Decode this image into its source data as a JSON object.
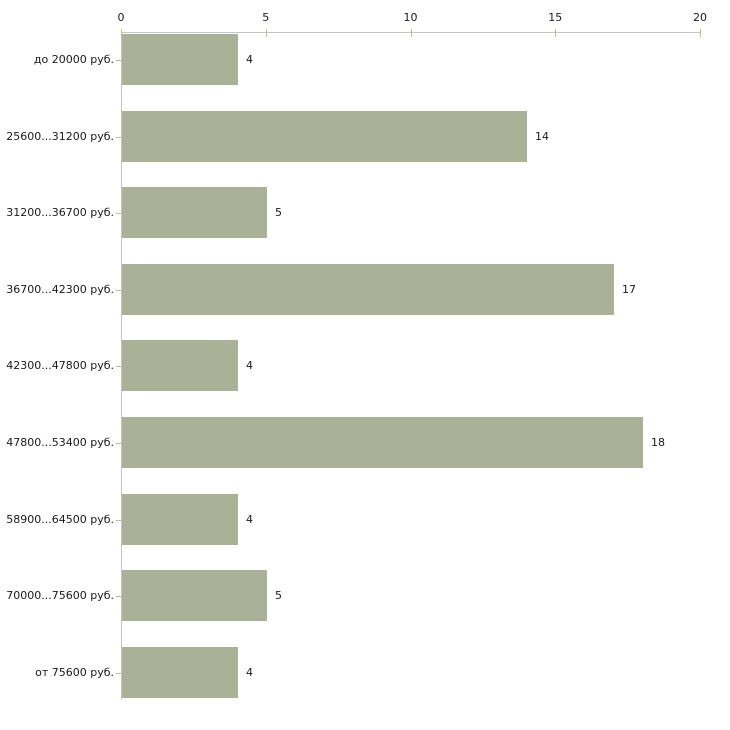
{
  "chart_data": {
    "type": "bar",
    "orientation": "horizontal",
    "title": "",
    "xlabel": "",
    "ylabel": "",
    "categories": [
      "до 20000 руб.",
      "25600...31200 руб.",
      "31200...36700 руб.",
      "36700...42300 руб.",
      "42300...47800 руб.",
      "47800...53400 руб.",
      "58900...64500 руб.",
      "70000...75600 руб.",
      "от 75600 руб."
    ],
    "values": [
      4,
      14,
      5,
      17,
      4,
      18,
      4,
      5,
      4
    ],
    "value_labels": [
      "4",
      "14",
      "5",
      "17",
      "4",
      "18",
      "4",
      "5",
      "4"
    ],
    "xticks": [
      "0",
      "5",
      "10",
      "15",
      "20"
    ],
    "xtick_values": [
      0,
      5,
      10,
      15,
      20
    ],
    "xlim": [
      0,
      20
    ],
    "grid": false,
    "legend": null,
    "axis_position": "top",
    "colors": {
      "bar_fill": "#abb197",
      "axis_line": "#c3c3c3",
      "tick_mark": "#bbbf8c",
      "text": "#1a1a1a",
      "background": "#ffffff"
    }
  }
}
